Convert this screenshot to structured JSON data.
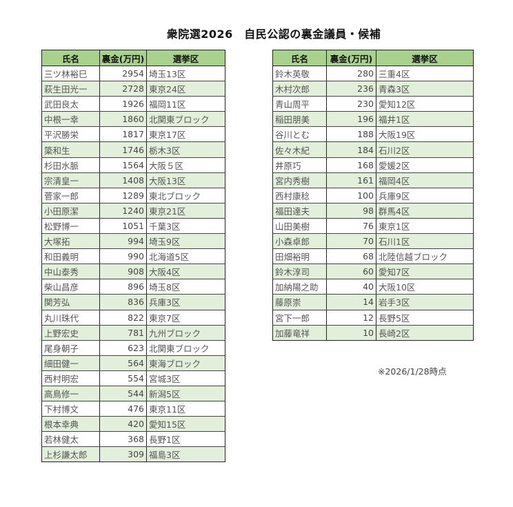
{
  "title": "衆院選2026　自民公認の裏金議員・候補",
  "headers": {
    "name": "氏名",
    "amount": "裏金(万円)",
    "district": "選挙区"
  },
  "colors": {
    "header": "#a9d18e",
    "alt_row": "#e2efda"
  },
  "left_rows": [
    {
      "name": "三ツ林裕巳",
      "amount": "2954",
      "district": "埼玉13区"
    },
    {
      "name": "萩生田光一",
      "amount": "2728",
      "district": "東京24区"
    },
    {
      "name": "武田良太",
      "amount": "1926",
      "district": "福岡11区"
    },
    {
      "name": "中根一幸",
      "amount": "1860",
      "district": "北関東ブロック"
    },
    {
      "name": "平沢勝栄",
      "amount": "1817",
      "district": "東京17区"
    },
    {
      "name": "簗和生",
      "amount": "1746",
      "district": "栃木3区"
    },
    {
      "name": "杉田水脈",
      "amount": "1564",
      "district": "大阪５区"
    },
    {
      "name": "宗清皇一",
      "amount": "1408",
      "district": "大阪13区"
    },
    {
      "name": "菅家一郎",
      "amount": "1289",
      "district": "東北ブロック"
    },
    {
      "name": "小田原潔",
      "amount": "1240",
      "district": "東京21区"
    },
    {
      "name": "松野博一",
      "amount": "1051",
      "district": "千葉3区"
    },
    {
      "name": "大塚拓",
      "amount": "994",
      "district": "埼玉9区"
    },
    {
      "name": "和田義明",
      "amount": "990",
      "district": "北海道5区"
    },
    {
      "name": "中山泰秀",
      "amount": "908",
      "district": "大阪4区"
    },
    {
      "name": "柴山昌彦",
      "amount": "896",
      "district": "埼玉8区"
    },
    {
      "name": "関芳弘",
      "amount": "836",
      "district": "兵庫3区"
    },
    {
      "name": "丸川珠代",
      "amount": "822",
      "district": "東京7区"
    },
    {
      "name": "上野宏史",
      "amount": "781",
      "district": "九州ブロック"
    },
    {
      "name": "尾身朝子",
      "amount": "623",
      "district": "北関東ブロック"
    },
    {
      "name": "細田健一",
      "amount": "564",
      "district": "東海ブロック"
    },
    {
      "name": "西村明宏",
      "amount": "554",
      "district": "宮城3区"
    },
    {
      "name": "高鳥修一",
      "amount": "544",
      "district": "新潟5区"
    },
    {
      "name": "下村博文",
      "amount": "476",
      "district": "東京11区"
    },
    {
      "name": "根本幸典",
      "amount": "420",
      "district": "愛知15区"
    },
    {
      "name": "若林健太",
      "amount": "368",
      "district": "長野1区"
    },
    {
      "name": "上杉謙太郎",
      "amount": "309",
      "district": "福島3区"
    }
  ],
  "right_rows": [
    {
      "name": "鈴木英敬",
      "amount": "280",
      "district": "三重4区"
    },
    {
      "name": "木村次郎",
      "amount": "236",
      "district": "青森3区"
    },
    {
      "name": "青山周平",
      "amount": "230",
      "district": "愛知12区"
    },
    {
      "name": "稲田朋美",
      "amount": "196",
      "district": "福井1区"
    },
    {
      "name": "谷川とむ",
      "amount": "188",
      "district": "大阪19区"
    },
    {
      "name": "佐々木紀",
      "amount": "184",
      "district": "石川2区"
    },
    {
      "name": "井原巧",
      "amount": "168",
      "district": "愛媛2区"
    },
    {
      "name": "宮内秀樹",
      "amount": "161",
      "district": "福岡4区"
    },
    {
      "name": "西村康稔",
      "amount": "100",
      "district": "兵庫9区"
    },
    {
      "name": "福田達夫",
      "amount": "98",
      "district": "群馬4区"
    },
    {
      "name": "山田美樹",
      "amount": "76",
      "district": "東京1区"
    },
    {
      "name": "小森卓郎",
      "amount": "70",
      "district": "石川1区"
    },
    {
      "name": "田畑裕明",
      "amount": "68",
      "district": "北陸信越ブロック"
    },
    {
      "name": "鈴木淳司",
      "amount": "60",
      "district": "愛知7区"
    },
    {
      "name": "加納陽之助",
      "amount": "40",
      "district": "大阪10区"
    },
    {
      "name": "藤原崇",
      "amount": "14",
      "district": "岩手3区"
    },
    {
      "name": "宮下一郎",
      "amount": "12",
      "district": "長野5区"
    },
    {
      "name": "加藤竜祥",
      "amount": "10",
      "district": "長崎2区"
    }
  ],
  "note": "※2026/1/28時点"
}
